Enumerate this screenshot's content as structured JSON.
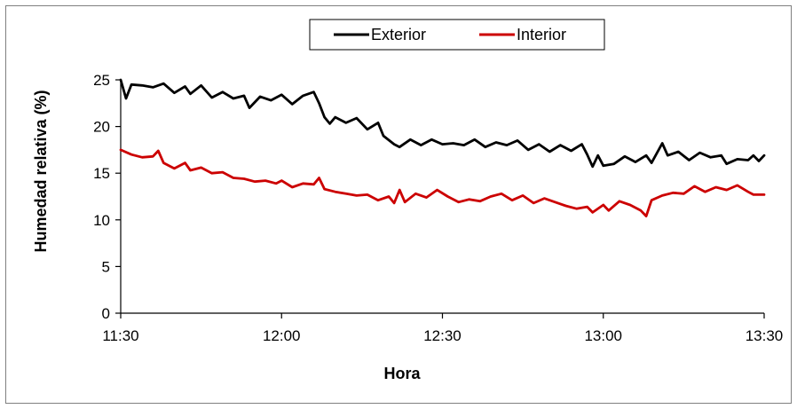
{
  "chart_data": {
    "type": "line",
    "xlabel": "Hora",
    "ylabel": "Humedad relativa (%)",
    "xlim": [
      "11:30",
      "13:30"
    ],
    "x_ticks": [
      "11:30",
      "12:00",
      "12:30",
      "13:00",
      "13:30"
    ],
    "ylim": [
      0,
      25
    ],
    "y_ticks": [
      "0",
      "5",
      "10",
      "15",
      "20",
      "25"
    ],
    "grid": false,
    "legend_position": "top-center",
    "series": [
      {
        "name": "Exterior",
        "color": "#000000",
        "points": [
          [
            "11:30",
            25.0
          ],
          [
            "11:31",
            23.0
          ],
          [
            "11:32",
            24.5
          ],
          [
            "11:34",
            24.4
          ],
          [
            "11:36",
            24.2
          ],
          [
            "11:38",
            24.6
          ],
          [
            "11:40",
            23.6
          ],
          [
            "11:42",
            24.3
          ],
          [
            "11:43",
            23.5
          ],
          [
            "11:45",
            24.4
          ],
          [
            "11:47",
            23.1
          ],
          [
            "11:49",
            23.7
          ],
          [
            "11:51",
            23.0
          ],
          [
            "11:53",
            23.3
          ],
          [
            "11:54",
            22.0
          ],
          [
            "11:56",
            23.2
          ],
          [
            "11:58",
            22.8
          ],
          [
            "12:00",
            23.4
          ],
          [
            "12:02",
            22.4
          ],
          [
            "12:04",
            23.3
          ],
          [
            "12:06",
            23.7
          ],
          [
            "12:07",
            22.5
          ],
          [
            "12:08",
            21.0
          ],
          [
            "12:09",
            20.3
          ],
          [
            "12:10",
            21.0
          ],
          [
            "12:12",
            20.4
          ],
          [
            "12:14",
            20.9
          ],
          [
            "12:16",
            19.7
          ],
          [
            "12:18",
            20.4
          ],
          [
            "12:19",
            19.0
          ],
          [
            "12:21",
            18.1
          ],
          [
            "12:22",
            17.8
          ],
          [
            "12:24",
            18.6
          ],
          [
            "12:26",
            18.0
          ],
          [
            "12:28",
            18.6
          ],
          [
            "12:30",
            18.1
          ],
          [
            "12:32",
            18.2
          ],
          [
            "12:34",
            18.0
          ],
          [
            "12:36",
            18.6
          ],
          [
            "12:38",
            17.8
          ],
          [
            "12:40",
            18.3
          ],
          [
            "12:42",
            18.0
          ],
          [
            "12:44",
            18.5
          ],
          [
            "12:46",
            17.5
          ],
          [
            "12:48",
            18.1
          ],
          [
            "12:50",
            17.3
          ],
          [
            "12:52",
            18.0
          ],
          [
            "12:54",
            17.4
          ],
          [
            "12:56",
            18.1
          ],
          [
            "12:57",
            17.0
          ],
          [
            "12:58",
            15.7
          ],
          [
            "12:59",
            16.9
          ],
          [
            "13:00",
            15.8
          ],
          [
            "13:02",
            16.0
          ],
          [
            "13:04",
            16.8
          ],
          [
            "13:06",
            16.2
          ],
          [
            "13:08",
            16.9
          ],
          [
            "13:09",
            16.1
          ],
          [
            "13:11",
            18.2
          ],
          [
            "13:12",
            16.9
          ],
          [
            "13:14",
            17.3
          ],
          [
            "13:16",
            16.4
          ],
          [
            "13:18",
            17.2
          ],
          [
            "13:20",
            16.7
          ],
          [
            "13:22",
            16.9
          ],
          [
            "13:23",
            16.0
          ],
          [
            "13:25",
            16.5
          ],
          [
            "13:27",
            16.4
          ],
          [
            "13:28",
            16.9
          ],
          [
            "13:29",
            16.3
          ],
          [
            "13:30",
            16.9
          ]
        ]
      },
      {
        "name": "Interior",
        "color": "#cc0000",
        "points": [
          [
            "11:30",
            17.5
          ],
          [
            "11:32",
            17.0
          ],
          [
            "11:34",
            16.7
          ],
          [
            "11:36",
            16.8
          ],
          [
            "11:37",
            17.4
          ],
          [
            "11:38",
            16.1
          ],
          [
            "11:40",
            15.5
          ],
          [
            "11:42",
            16.1
          ],
          [
            "11:43",
            15.3
          ],
          [
            "11:45",
            15.6
          ],
          [
            "11:47",
            15.0
          ],
          [
            "11:49",
            15.1
          ],
          [
            "11:51",
            14.5
          ],
          [
            "11:53",
            14.4
          ],
          [
            "11:55",
            14.1
          ],
          [
            "11:57",
            14.2
          ],
          [
            "11:59",
            13.9
          ],
          [
            "12:00",
            14.2
          ],
          [
            "12:02",
            13.5
          ],
          [
            "12:04",
            13.9
          ],
          [
            "12:06",
            13.8
          ],
          [
            "12:07",
            14.5
          ],
          [
            "12:08",
            13.3
          ],
          [
            "12:10",
            13.0
          ],
          [
            "12:12",
            12.8
          ],
          [
            "12:14",
            12.6
          ],
          [
            "12:16",
            12.7
          ],
          [
            "12:18",
            12.1
          ],
          [
            "12:20",
            12.5
          ],
          [
            "12:21",
            11.8
          ],
          [
            "12:22",
            13.2
          ],
          [
            "12:23",
            11.9
          ],
          [
            "12:25",
            12.8
          ],
          [
            "12:27",
            12.4
          ],
          [
            "12:29",
            13.2
          ],
          [
            "12:31",
            12.5
          ],
          [
            "12:33",
            11.9
          ],
          [
            "12:35",
            12.2
          ],
          [
            "12:37",
            12.0
          ],
          [
            "12:39",
            12.5
          ],
          [
            "12:41",
            12.8
          ],
          [
            "12:43",
            12.1
          ],
          [
            "12:45",
            12.6
          ],
          [
            "12:47",
            11.8
          ],
          [
            "12:49",
            12.3
          ],
          [
            "12:51",
            11.9
          ],
          [
            "12:53",
            11.5
          ],
          [
            "12:55",
            11.2
          ],
          [
            "12:57",
            11.4
          ],
          [
            "12:58",
            10.8
          ],
          [
            "13:00",
            11.6
          ],
          [
            "13:01",
            11.0
          ],
          [
            "13:03",
            12.0
          ],
          [
            "13:05",
            11.6
          ],
          [
            "13:07",
            11.0
          ],
          [
            "13:08",
            10.4
          ],
          [
            "13:09",
            12.1
          ],
          [
            "13:11",
            12.6
          ],
          [
            "13:13",
            12.9
          ],
          [
            "13:15",
            12.8
          ],
          [
            "13:17",
            13.6
          ],
          [
            "13:19",
            13.0
          ],
          [
            "13:21",
            13.5
          ],
          [
            "13:23",
            13.2
          ],
          [
            "13:25",
            13.7
          ],
          [
            "13:27",
            13.0
          ],
          [
            "13:28",
            12.7
          ],
          [
            "13:30",
            12.7
          ]
        ]
      }
    ]
  }
}
